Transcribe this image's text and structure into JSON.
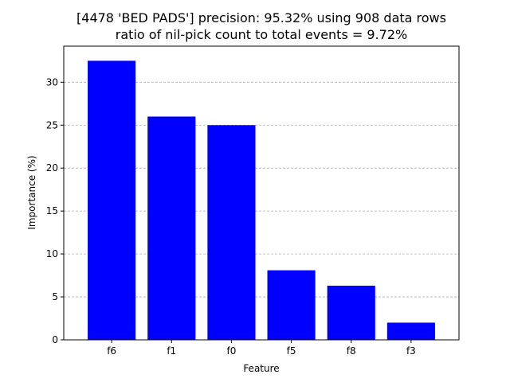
{
  "chart_data": {
    "type": "bar",
    "title": "[4478 'BED PADS'] precision: 95.32% using 908 data rows",
    "subtitle": "ratio of nil-pick count to total events = 9.72%",
    "xlabel": "Feature",
    "ylabel": "Importance (%)",
    "categories": [
      "f6",
      "f1",
      "f0",
      "f5",
      "f8",
      "f3"
    ],
    "values": [
      32.5,
      26.0,
      25.0,
      8.1,
      6.3,
      2.0
    ],
    "ylim": [
      0,
      34.2
    ],
    "yticks": [
      0,
      5,
      10,
      15,
      20,
      25,
      30
    ],
    "grid": "y-dashed",
    "bar_color": "#0000ff",
    "grid_color": "#b0b0b0"
  }
}
